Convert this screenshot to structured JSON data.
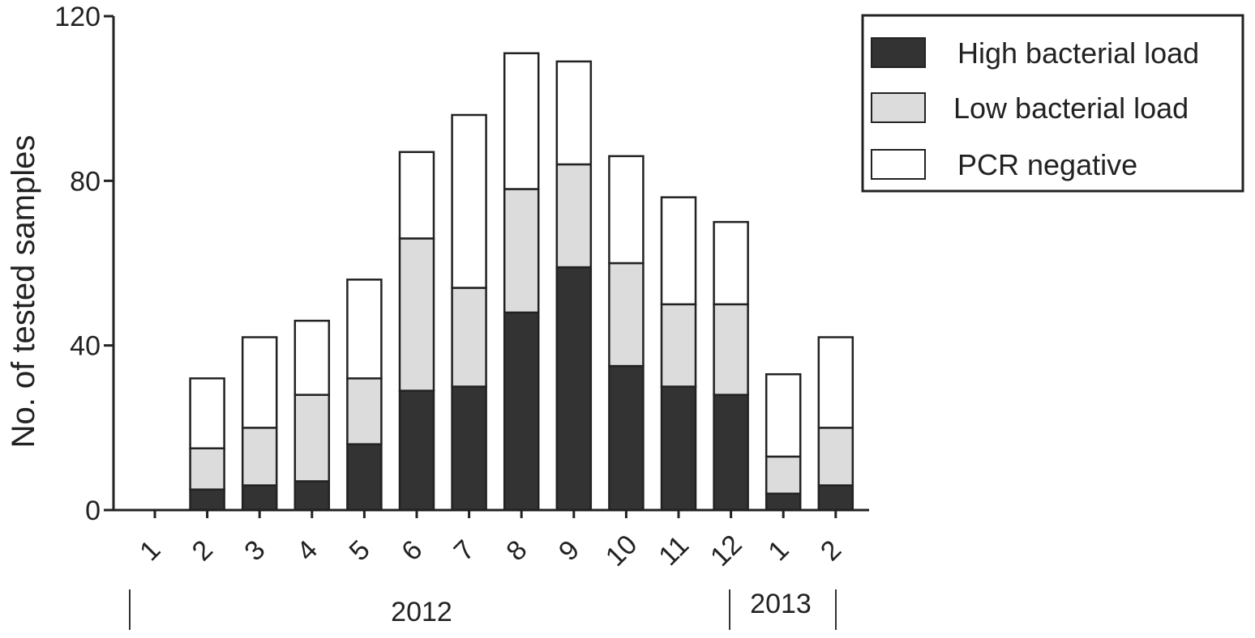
{
  "chart_data": {
    "type": "bar",
    "stacked": true,
    "ylabel": "No. of tested samples",
    "xlabel": "",
    "ylim": [
      0,
      120
    ],
    "yticks": [
      "0",
      "40",
      "80",
      "120"
    ],
    "categories": [
      "1",
      "2",
      "3",
      "4",
      "5",
      "6",
      "7",
      "8",
      "9",
      "10",
      "11",
      "12",
      "1",
      "2"
    ],
    "years": [
      {
        "label": "2012",
        "categories": [
          "1",
          "2",
          "3",
          "4",
          "5",
          "6",
          "7",
          "8",
          "9",
          "10",
          "11",
          "12"
        ]
      },
      {
        "label": "2013",
        "categories": [
          "1",
          "2"
        ]
      }
    ],
    "series": [
      {
        "name": "High bacterial load",
        "color": "#333333",
        "values": [
          0,
          5,
          6,
          7,
          16,
          29,
          30,
          48,
          59,
          35,
          30,
          28,
          4,
          6
        ]
      },
      {
        "name": "Low bacterial load",
        "color": "#dcdcdc",
        "values": [
          0,
          10,
          14,
          21,
          16,
          37,
          24,
          30,
          25,
          25,
          20,
          22,
          9,
          14
        ]
      },
      {
        "name": "PCR negative",
        "color": "#ffffff",
        "values": [
          0,
          17,
          22,
          18,
          24,
          21,
          42,
          33,
          25,
          26,
          26,
          20,
          20,
          22
        ]
      }
    ],
    "legend_position": "top-right",
    "grid": false
  }
}
